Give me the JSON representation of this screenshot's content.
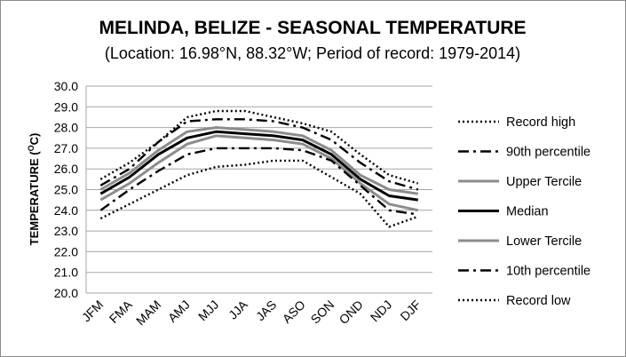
{
  "chart_data": {
    "type": "line",
    "title": "MELINDA,  BELIZE - SEASONAL TEMPERATURE",
    "subtitle": "(Location: 16.98°N, 88.32°W; Period of record: 1979-2014)",
    "ylabel_main": "TEMPERATURE (",
    "ylabel_sup": "O",
    "ylabel_tail": "C)",
    "xlabel": "",
    "ylim": [
      20.0,
      30.0
    ],
    "ytick_step": 1.0,
    "grid": true,
    "legend_position": "right",
    "categories": [
      "JFM",
      "FMA",
      "MAM",
      "AMJ",
      "MJJ",
      "JJA",
      "JAS",
      "ASO",
      "SON",
      "OND",
      "NDJ",
      "DJF"
    ],
    "series": [
      {
        "name": "Record high",
        "style": "dotted",
        "color": "#000000",
        "values": [
          25.5,
          26.3,
          27.3,
          28.5,
          28.8,
          28.8,
          28.5,
          28.2,
          27.8,
          26.7,
          25.7,
          25.3
        ]
      },
      {
        "name": "90th percentile",
        "style": "dashdot",
        "color": "#000000",
        "values": [
          25.2,
          26.0,
          27.3,
          28.3,
          28.4,
          28.4,
          28.3,
          28.0,
          27.4,
          26.3,
          25.4,
          25.0
        ]
      },
      {
        "name": "Upper Tercile",
        "style": "solid",
        "color": "#8c8c8c",
        "values": [
          25.0,
          25.8,
          26.9,
          27.8,
          28.0,
          27.9,
          27.8,
          27.6,
          26.9,
          25.7,
          25.0,
          24.8
        ]
      },
      {
        "name": "Median",
        "style": "solid",
        "color": "#000000",
        "values": [
          24.8,
          25.6,
          26.7,
          27.5,
          27.8,
          27.7,
          27.6,
          27.4,
          26.7,
          25.5,
          24.7,
          24.5
        ]
      },
      {
        "name": "Lower Tercile",
        "style": "solid",
        "color": "#8c8c8c",
        "values": [
          24.5,
          25.3,
          26.3,
          27.2,
          27.6,
          27.5,
          27.4,
          27.2,
          26.5,
          25.3,
          24.3,
          24.0
        ]
      },
      {
        "name": "10th percentile",
        "style": "dashdot",
        "color": "#000000",
        "values": [
          24.0,
          25.0,
          25.9,
          26.7,
          27.0,
          27.0,
          27.0,
          26.9,
          26.4,
          25.2,
          24.0,
          23.8
        ]
      },
      {
        "name": "Record low",
        "style": "dotted",
        "color": "#000000",
        "values": [
          23.6,
          24.3,
          25.0,
          25.7,
          26.1,
          26.2,
          26.4,
          26.4,
          25.6,
          24.8,
          23.2,
          23.7
        ]
      }
    ]
  }
}
